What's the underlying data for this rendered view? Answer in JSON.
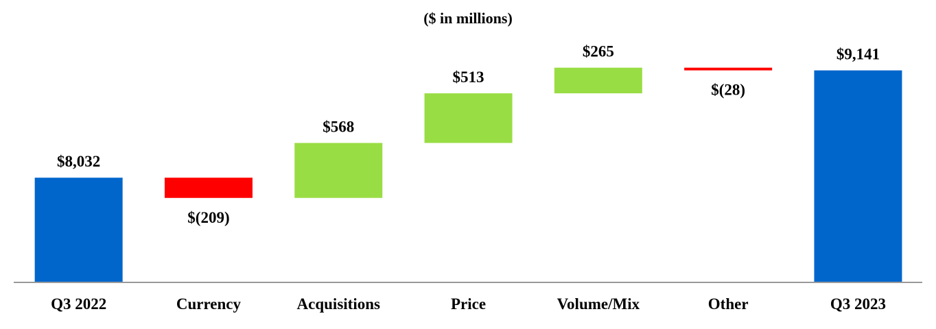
{
  "chart_data": {
    "type": "bar",
    "title": "($ in millions)",
    "categories": [
      "Q3 2022",
      "Currency",
      "Acquisitions",
      "Price",
      "Volume/Mix",
      "Other",
      "Q3 2023"
    ],
    "values": [
      8032,
      -209,
      568,
      513,
      265,
      -28,
      9141
    ],
    "labels": [
      "$8,032",
      "$(209)",
      "$568",
      "$513",
      "$265",
      "$(28)",
      "$9,141"
    ],
    "kinds": [
      "total",
      "delta",
      "delta",
      "delta",
      "delta",
      "delta",
      "total"
    ],
    "colors": {
      "total": "#0066CC",
      "increase": "#99DD44",
      "decrease": "#FF0000",
      "axis": "#999999"
    },
    "legend": "none",
    "grid": false
  }
}
